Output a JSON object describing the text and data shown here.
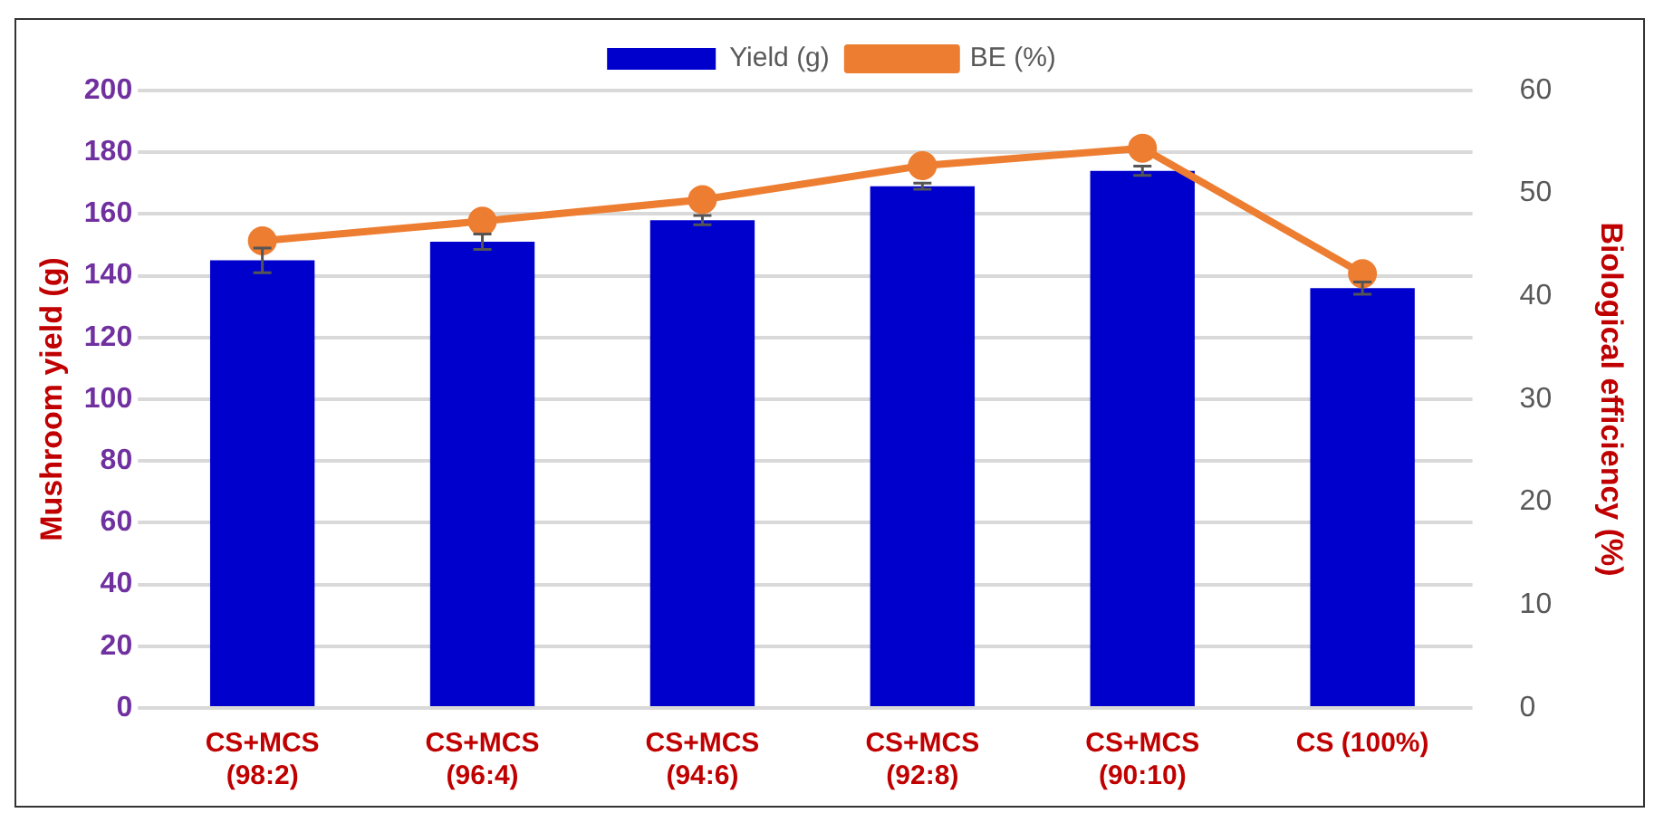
{
  "chart_data": {
    "type": "bar",
    "categories": [
      "CS+MCS\n(98:2)",
      "CS+MCS\n(96:4)",
      "CS+MCS\n(94:6)",
      "CS+MCS\n(92:8)",
      "CS+MCS\n(90:10)",
      "CS (100%)"
    ],
    "series": [
      {
        "name": "Yield (g)",
        "color": "#0000cc",
        "values": [
          145,
          151,
          158,
          169,
          174,
          136
        ],
        "errors": [
          4,
          2.5,
          1.5,
          1,
          1.5,
          2
        ]
      },
      {
        "name": "BE (%)",
        "type": "line",
        "axis": "y2",
        "color": "#ed7d31",
        "marker": "circle",
        "values": [
          45.4,
          47.3,
          49.4,
          52.7,
          54.4,
          42.2
        ]
      }
    ],
    "ylabel": "Mushroom yield (g)",
    "y2label": "Biological efficiency (%)",
    "ylim": [
      0,
      200
    ],
    "yticks": [
      0,
      20,
      40,
      60,
      80,
      100,
      120,
      140,
      160,
      180,
      200
    ],
    "y2lim": [
      0,
      60
    ],
    "y2ticks": [
      0,
      10,
      20,
      30,
      40,
      50,
      60
    ],
    "grid": "y",
    "legend": "top"
  }
}
